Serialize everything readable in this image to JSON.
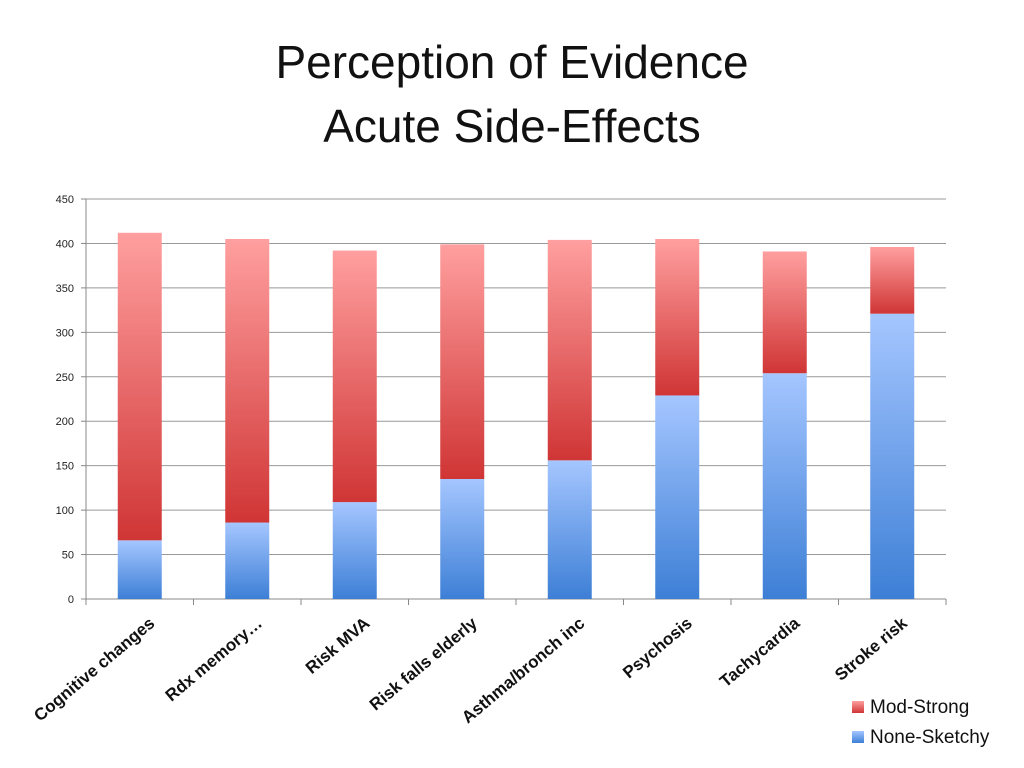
{
  "chart_data": {
    "type": "bar",
    "stacked": true,
    "title_lines": [
      "Perception of Evidence",
      "Acute Side-Effects"
    ],
    "categories": [
      "Cognitive changes",
      "Rdx memory…",
      "Risk MVA",
      "Risk falls elderly",
      "Asthma/bronch inc",
      "Psychosis",
      "Tachycardia",
      "Stroke risk"
    ],
    "series": [
      {
        "name": "None-Sketchy",
        "color": "#4a86d8",
        "values": [
          66,
          86,
          109,
          135,
          156,
          229,
          254,
          321
        ]
      },
      {
        "name": "Mod-Strong",
        "color": "#d84545",
        "values": [
          346,
          319,
          283,
          264,
          248,
          176,
          137,
          75
        ]
      }
    ],
    "ylim": [
      0,
      450
    ],
    "yticks": [
      "0",
      "50",
      "100",
      "150",
      "200",
      "250",
      "300",
      "350",
      "400",
      "450"
    ],
    "grid": true,
    "legend_position": "bottom-right",
    "legend_order": [
      "Mod-Strong",
      "None-Sketchy"
    ]
  }
}
